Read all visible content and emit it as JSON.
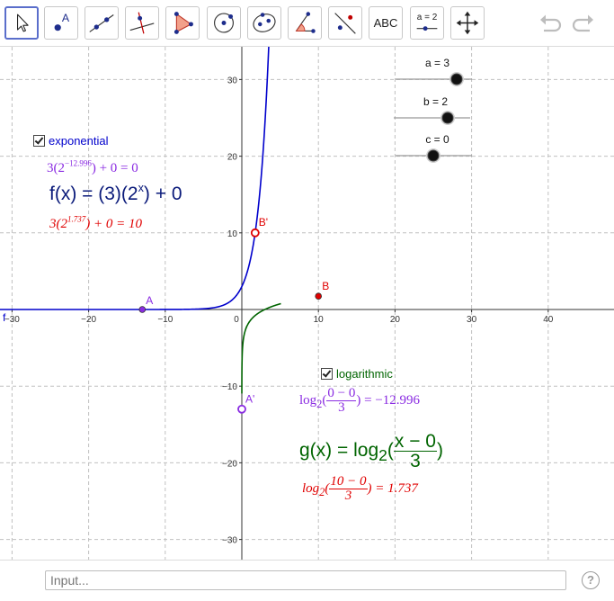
{
  "colors": {
    "exponential": "#0000cc",
    "logarithmic": "#006400",
    "point_red": "#e00000",
    "point_purple": "#8a2be2",
    "active_tool_border": "#5a6ecb",
    "grid": "#c0c0c0"
  },
  "toolbar": {
    "tools": [
      {
        "name": "move-tool",
        "icon": "pointer-arrow-icon"
      },
      {
        "name": "point-tool",
        "icon": "point-icon",
        "label": "A"
      },
      {
        "name": "line-tool",
        "icon": "line-through-two-points-icon"
      },
      {
        "name": "perpendicular-line-tool",
        "icon": "perpendicular-line-icon"
      },
      {
        "name": "polygon-tool",
        "icon": "polygon-icon"
      },
      {
        "name": "circle-tool",
        "icon": "circle-center-point-icon"
      },
      {
        "name": "conic-tool",
        "icon": "ellipse-icon"
      },
      {
        "name": "angle-tool",
        "icon": "angle-icon"
      },
      {
        "name": "reflect-tool",
        "icon": "reflect-about-line-icon"
      },
      {
        "name": "text-tool",
        "label": "ABC"
      },
      {
        "name": "slider-tool",
        "label": "a = 2"
      },
      {
        "name": "move-graphics-view-tool",
        "icon": "move-arrows-icon"
      }
    ],
    "undo": "undo-icon",
    "redo": "redo-icon"
  },
  "sliders": [
    {
      "label": "a = 3",
      "value": 3
    },
    {
      "label": "b = 2",
      "value": 2
    },
    {
      "label": "c = 0",
      "value": 0
    }
  ],
  "checkboxes": {
    "exponential": {
      "label": "exponential",
      "checked": true
    },
    "logarithmic": {
      "label": "logarithmic",
      "checked": true
    }
  },
  "formulas": {
    "exp_at_A": {
      "base": "3(2",
      "exp": "−12.996",
      "rest": ") + 0 = 0"
    },
    "f_def": {
      "lhs": "f(x) = (3)(2",
      "exp": "x",
      "rest": ") + 0"
    },
    "exp_at_B": {
      "base": "3(2",
      "exp": "1.737",
      "rest": ") + 0 = 10"
    },
    "log_at_A": {
      "pre": "log",
      "sub": "2",
      "num": "0 − 0",
      "den": "3",
      "rest": ") = −12.996"
    },
    "g_def": {
      "pre": "g(x) = log",
      "sub": "2",
      "num": "x − 0",
      "den": "3",
      "rest": ")"
    },
    "log_at_B": {
      "pre": "log",
      "sub": "2",
      "num": "10 − 0",
      "den": "3",
      "rest": ") = 1.737"
    }
  },
  "points": {
    "A": {
      "label": "A",
      "x": -12.996,
      "y": 0
    },
    "A_prime": {
      "label": "A'",
      "x": 0,
      "y": -12.996
    },
    "B": {
      "label": "B",
      "x": 10,
      "y": 1.737
    },
    "B_prime": {
      "label": "B'",
      "x": 1.737,
      "y": 10
    }
  },
  "function_label": "f",
  "axes": {
    "x_ticks": [
      "−30",
      "−20",
      "−10",
      "0",
      "10",
      "20",
      "30",
      "40"
    ],
    "y_ticks": [
      "30",
      "20",
      "10",
      "−10",
      "−20",
      "−30"
    ]
  },
  "input": {
    "placeholder": "Input..."
  },
  "help_label": "?"
}
